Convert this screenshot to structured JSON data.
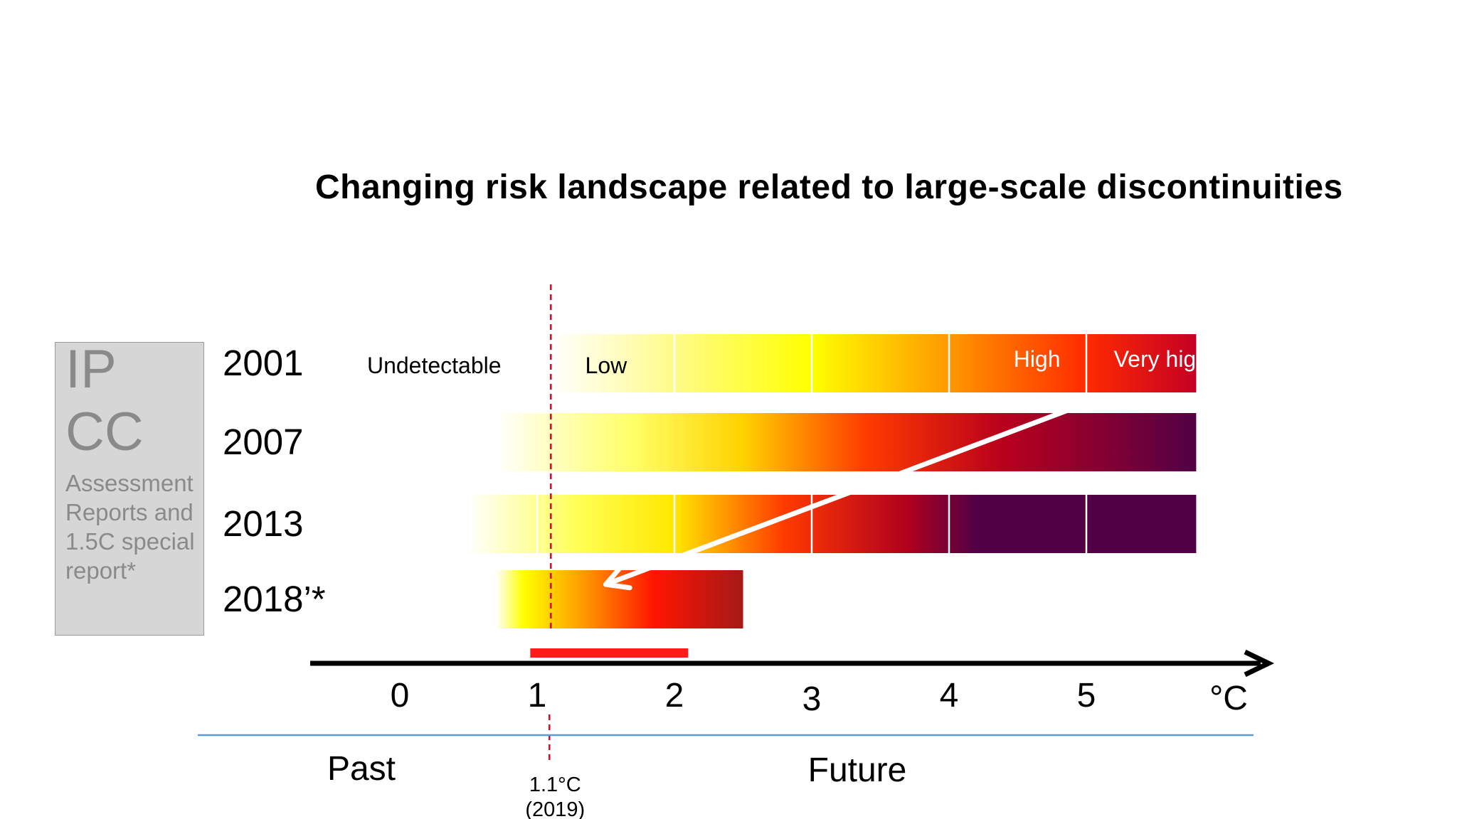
{
  "slide": {
    "side_panel": {
      "heading": "IPCC",
      "subtext": "Assessment Reports and 1.5C special report*"
    }
  },
  "chart_data": {
    "type": "heatmap",
    "title": "Changing risk landscape related to large-scale discontinuities",
    "x_unit": "°C",
    "x_ticks": [
      0,
      1,
      2,
      3,
      4,
      5
    ],
    "xlim": [
      -0.65,
      6.3
    ],
    "rows": [
      {
        "label": "2001",
        "start": 1.1,
        "end": 5.8,
        "gradient": [
          {
            "at": 1.1,
            "color": "#ffffff"
          },
          {
            "at": 2.0,
            "color": "#fffb8a"
          },
          {
            "at": 3.0,
            "color": "#ffff00"
          },
          {
            "at": 4.0,
            "color": "#ff9800"
          },
          {
            "at": 5.0,
            "color": "#ff2a00"
          },
          {
            "at": 5.8,
            "color": "#c40024"
          }
        ],
        "dividers": [
          2.0,
          3.0,
          4.0,
          5.0
        ]
      },
      {
        "label": "2007",
        "start": 0.7,
        "end": 5.8,
        "gradient": [
          {
            "at": 0.7,
            "color": "#ffffff"
          },
          {
            "at": 1.7,
            "color": "#ffff66"
          },
          {
            "at": 2.5,
            "color": "#ffd200"
          },
          {
            "at": 3.4,
            "color": "#ff3a00"
          },
          {
            "at": 4.4,
            "color": "#b8001c"
          },
          {
            "at": 5.8,
            "color": "#520046"
          }
        ],
        "dividers": []
      },
      {
        "label": "2013",
        "start": 0.5,
        "end": 5.8,
        "gradient": [
          {
            "at": 0.5,
            "color": "#ffffff"
          },
          {
            "at": 1.3,
            "color": "#ffff55"
          },
          {
            "at": 2.0,
            "color": "#ffe800"
          },
          {
            "at": 2.8,
            "color": "#ff3a00"
          },
          {
            "at": 3.7,
            "color": "#b0001e"
          },
          {
            "at": 4.2,
            "color": "#520046"
          },
          {
            "at": 5.8,
            "color": "#520046"
          }
        ],
        "dividers": [
          1.0,
          2.0,
          3.0,
          4.0,
          5.0
        ]
      },
      {
        "label": "2018’*",
        "start": 0.7,
        "end": 2.5,
        "gradient": [
          {
            "at": 0.7,
            "color": "#ffffff"
          },
          {
            "at": 0.9,
            "color": "#ffff00"
          },
          {
            "at": 1.4,
            "color": "#ff8a00"
          },
          {
            "at": 1.85,
            "color": "#ff1500"
          },
          {
            "at": 2.5,
            "color": "#a61818"
          }
        ],
        "dividers": []
      }
    ],
    "risk_levels": [
      {
        "label": "Undetectable",
        "at": 0.25,
        "color": "#000000"
      },
      {
        "label": "Low",
        "at": 1.55,
        "color": "#000000"
      },
      {
        "label": "High",
        "at": 4.65,
        "color": "#ffffff"
      },
      {
        "label": "Very high",
        "at": 5.55,
        "color": "#ffffff"
      }
    ],
    "current_warming": {
      "value": 1.1,
      "label_line1": "1.1°C",
      "label_line2": "(2019)"
    },
    "highlight_range": [
      0.95,
      2.1
    ],
    "trend_arrow": {
      "from": [
        5.1,
        "2001"
      ],
      "to": [
        1.5,
        "2018’*"
      ]
    },
    "periods": {
      "past": "Past",
      "future": "Future"
    },
    "colors": {
      "axis": "#000000",
      "dashed_line": "#e8001c",
      "highlight": "#ff1a1a",
      "separator": "#5b9bd5",
      "arrow": "#ffffff"
    }
  }
}
